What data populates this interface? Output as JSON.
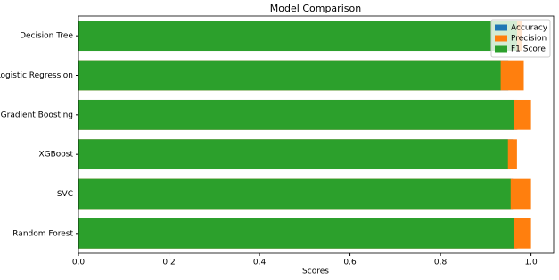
{
  "chart_data": {
    "type": "barh_overlay",
    "title": "Model Comparison",
    "xlabel": "Scores",
    "categories": [
      "Decision Tree",
      "Logistic Regression",
      "Gradient Boosting",
      "XGBoost",
      "SVC",
      "Random Forest"
    ],
    "series": [
      {
        "name": "Accuracy",
        "color": "#1f77b4",
        "values": [
          0.97,
          0.95,
          0.97,
          0.96,
          0.96,
          0.97
        ]
      },
      {
        "name": "Precision",
        "color": "#ff7f0e",
        "values": [
          0.98,
          0.984,
          1.0,
          0.969,
          1.0,
          1.0
        ]
      },
      {
        "name": "F1 Score",
        "color": "#2ca02c",
        "values": [
          0.969,
          0.933,
          0.963,
          0.949,
          0.955,
          0.963
        ]
      }
    ],
    "xlim": [
      0,
      1.05
    ],
    "xticks": [
      {
        "value": 0,
        "label": "0.0"
      },
      0.2,
      0.4,
      0.6,
      0.8,
      {
        "value": 1,
        "label": "1.0"
      }
    ],
    "legend": "upper right"
  }
}
